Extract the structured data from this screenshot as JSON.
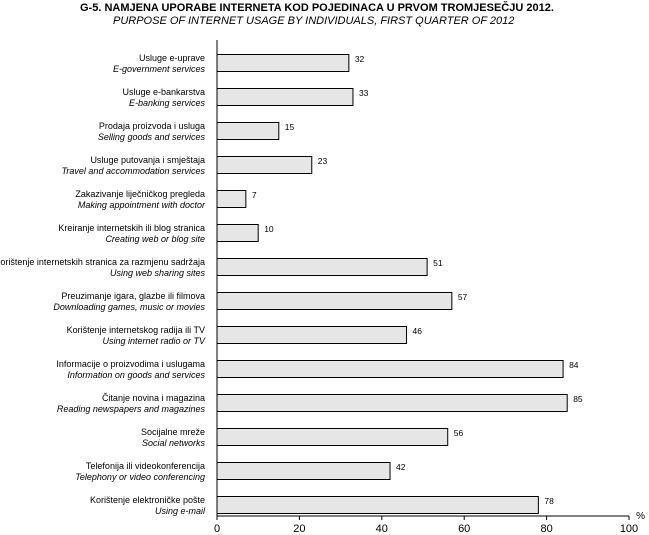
{
  "header": {
    "title": "G-5.  NAMJENA UPORABE INTERNETA KOD POJEDINACA U PRVOM TROMJESEČJU 2012.",
    "subtitle": "PURPOSE OF INTERNET USAGE BY INDIVIDUALS, FIRST QUARTER OF 2012"
  },
  "chart_data": {
    "type": "bar",
    "orientation": "horizontal",
    "categories": [
      {
        "hr": "Usluge e-uprave",
        "en": "E-government services"
      },
      {
        "hr": "Usluge e-bankarstva",
        "en": "E-banking services"
      },
      {
        "hr": "Prodaja proizvoda i usluga",
        "en": "Selling goods and services"
      },
      {
        "hr": "Usluge putovanja i smještaja",
        "en": "Travel and accommodation services"
      },
      {
        "hr": "Zakazivanje liječničkog pregleda",
        "en": "Making appointment with doctor"
      },
      {
        "hr": "Kreiranje internetskih ili blog stranica",
        "en": "Creating web or blog site"
      },
      {
        "hr": "Korištenje internetskih stranica za razmjenu sadržaja",
        "en": "Using web sharing sites"
      },
      {
        "hr": "Preuzimanje igara, glazbe ili filmova",
        "en": "Downloading games, music or movies"
      },
      {
        "hr": "Korištenje internetskog radija ili TV",
        "en": "Using internet radio or TV"
      },
      {
        "hr": "Informacije o proizvodima i uslugama",
        "en": "Information on goods and services"
      },
      {
        "hr": "Čitanje novina i magazina",
        "en": "Reading newspapers and magazines"
      },
      {
        "hr": "Socijalne mreže",
        "en": "Social networks"
      },
      {
        "hr": "Telefonija ili videokonferencija",
        "en": "Telephony or video conferencing"
      },
      {
        "hr": "Korištenje elektroničke pošte",
        "en": "Using e-mail"
      }
    ],
    "values": [
      32,
      33,
      15,
      23,
      7,
      10,
      51,
      57,
      46,
      84,
      85,
      56,
      42,
      78
    ],
    "xlim": [
      0,
      100
    ],
    "xticks": [
      0,
      20,
      40,
      60,
      80,
      100
    ],
    "xunit": "%",
    "grid": false,
    "bar_color": "#e6e6e6",
    "bar_edge_color": "#000000"
  }
}
